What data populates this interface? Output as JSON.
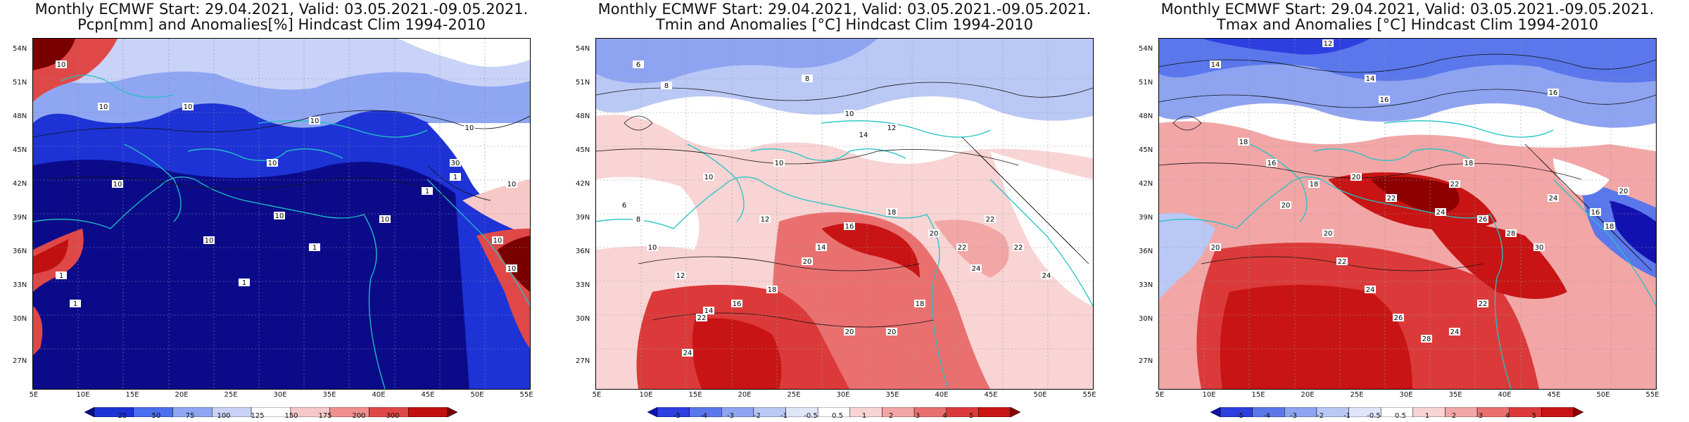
{
  "panels": [
    {
      "id": "pcpn",
      "title_line1": "Monthly ECMWF Start: 29.04.2021, Valid: 03.05.2021.-09.05.2021.",
      "title_line2": "Pcpn[mm] and Anomalies[%] Hindcast Clim 1994-2010",
      "lat_labels": [
        "54N",
        "51N",
        "48N",
        "45N",
        "42N",
        "39N",
        "36N",
        "33N",
        "30N",
        "27N"
      ],
      "lon_labels": [
        "5E",
        "10E",
        "15E",
        "20E",
        "25E",
        "30E",
        "35E",
        "40E",
        "45E",
        "50E",
        "55E"
      ],
      "colorbar_labels": [
        "25",
        "50",
        "75",
        "100",
        "125",
        "150",
        "175",
        "200",
        "300"
      ],
      "colorbar_colors": [
        "#0b0b8a",
        "#1d33d6",
        "#4c6ef0",
        "#8fa6f2",
        "#c9d3f7",
        "#ffffff",
        "#f7c8c8",
        "#ef8f8f",
        "#e04848",
        "#c01010",
        "#7a0000"
      ],
      "contour_labels": [
        "10",
        "10",
        "10",
        "10",
        "10",
        "10",
        "10",
        "10",
        "1",
        "1",
        "1",
        "1",
        "1",
        "1",
        "10",
        "10",
        "10",
        "10",
        "30",
        "10"
      ]
    },
    {
      "id": "tmin",
      "title_line1": "Monthly ECMWF Start: 29.04.2021, Valid: 03.05.2021.-09.05.2021.",
      "title_line2": "Tmin and Anomalies [°C] Hindcast Clim 1994-2010",
      "lat_labels": [
        "54N",
        "51N",
        "48N",
        "45N",
        "42N",
        "39N",
        "36N",
        "33N",
        "30N",
        "27N"
      ],
      "lon_labels": [
        "5E",
        "10E",
        "15E",
        "20E",
        "25E",
        "30E",
        "35E",
        "40E",
        "45E",
        "50E",
        "55E"
      ],
      "colorbar_labels": [
        "-5",
        "-4",
        "-3",
        "-2",
        "-1",
        "-0.5",
        "0.5",
        "1",
        "2",
        "3",
        "4",
        "5"
      ],
      "colorbar_colors": [
        "#1212b0",
        "#2e3fe0",
        "#5a77ec",
        "#8ea4f1",
        "#bac8f5",
        "#e0e6fa",
        "#ffffff",
        "#f9d4d4",
        "#f2a6a6",
        "#ea7070",
        "#dc3a3a",
        "#c81414",
        "#8e0000"
      ],
      "contour_labels": [
        "6",
        "8",
        "8",
        "10",
        "12",
        "14",
        "10",
        "10",
        "12",
        "14",
        "16",
        "18",
        "20",
        "22",
        "24",
        "20",
        "18",
        "16",
        "14",
        "12",
        "10",
        "8",
        "6",
        "20",
        "22",
        "24",
        "18",
        "20",
        "22",
        "22",
        "24"
      ]
    },
    {
      "id": "tmax",
      "title_line1": "Monthly ECMWF Start: 29.04.2021, Valid: 03.05.2021.-09.05.2021.",
      "title_line2": "Tmax and Anomalies [°C] Hindcast Clim 1994-2010",
      "lat_labels": [
        "54N",
        "51N",
        "48N",
        "45N",
        "42N",
        "39N",
        "36N",
        "33N",
        "30N",
        "27N"
      ],
      "lon_labels": [
        "5E",
        "10E",
        "15E",
        "20E",
        "25E",
        "30E",
        "35E",
        "40E",
        "45E",
        "50E",
        "55E"
      ],
      "colorbar_labels": [
        "-5",
        "-4",
        "-3",
        "-2",
        "-1",
        "-0.5",
        "0.5",
        "1",
        "2",
        "3",
        "4",
        "5"
      ],
      "colorbar_colors": [
        "#1212b0",
        "#2e3fe0",
        "#5a77ec",
        "#8ea4f1",
        "#bac8f5",
        "#e0e6fa",
        "#ffffff",
        "#f9d4d4",
        "#f2a6a6",
        "#ea7070",
        "#dc3a3a",
        "#c81414",
        "#8e0000"
      ],
      "contour_labels": [
        "12",
        "14",
        "14",
        "16",
        "16",
        "18",
        "20",
        "22",
        "24",
        "26",
        "28",
        "30",
        "24",
        "22",
        "20",
        "18",
        "16",
        "18",
        "20",
        "22",
        "24",
        "26",
        "28",
        "24",
        "22",
        "20",
        "16",
        "18",
        "20"
      ]
    }
  ]
}
